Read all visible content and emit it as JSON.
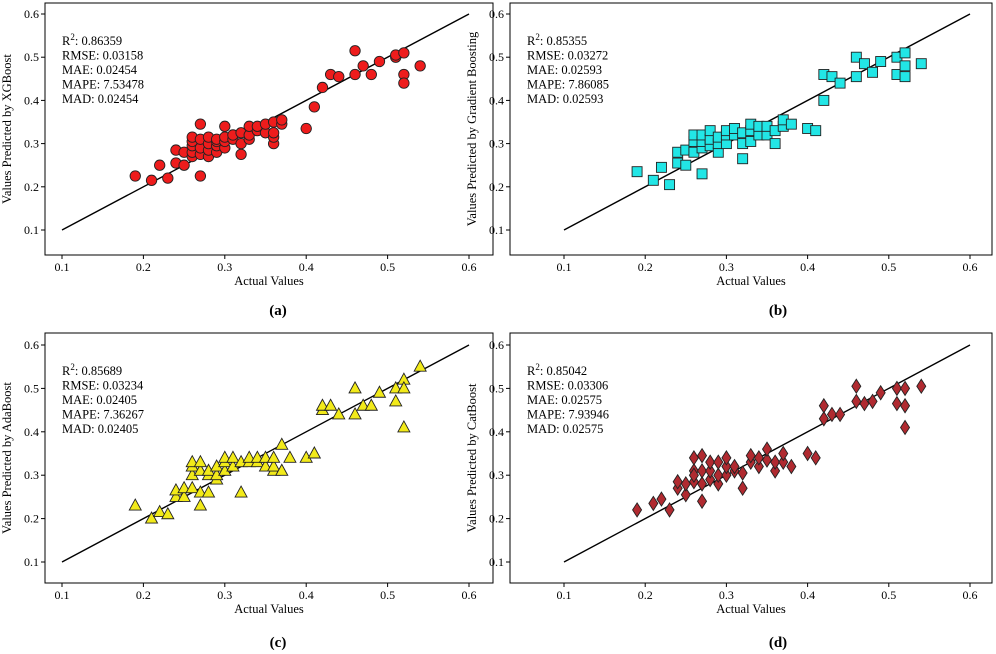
{
  "marker_colors": {
    "circle": "#ee1c1c",
    "square": "#22e6e6",
    "triangle": "#f2ea1a",
    "diamond": "#b02a30"
  },
  "chart_data": [
    {
      "type": "scatter",
      "marker": "circle",
      "xlabel": "Actual Values",
      "ylabel": "Values Predicted by XGBoost",
      "caption": "(a)",
      "xlim": [
        0.1,
        0.6
      ],
      "ylim": [
        0.1,
        0.6
      ],
      "ticks": [
        "0.1",
        "0.2",
        "0.3",
        "0.4",
        "0.5",
        "0.6"
      ],
      "reference_line": [
        [
          0.1,
          0.1
        ],
        [
          0.6,
          0.6
        ]
      ],
      "stats": {
        "r2_label": "R",
        "r2_exp": "2",
        "r2_value": ": 0.86359",
        "rmse": "RMSE: 0.03158",
        "mae": "MAE: 0.02454",
        "mape": "MAPE: 7.53478",
        "mad": "MAD: 0.02454"
      },
      "x": [
        0.19,
        0.21,
        0.22,
        0.23,
        0.24,
        0.24,
        0.25,
        0.25,
        0.26,
        0.26,
        0.26,
        0.26,
        0.26,
        0.27,
        0.27,
        0.27,
        0.27,
        0.27,
        0.28,
        0.28,
        0.28,
        0.28,
        0.29,
        0.29,
        0.29,
        0.29,
        0.3,
        0.3,
        0.3,
        0.3,
        0.31,
        0.31,
        0.32,
        0.32,
        0.32,
        0.33,
        0.33,
        0.33,
        0.34,
        0.34,
        0.35,
        0.35,
        0.36,
        0.36,
        0.36,
        0.36,
        0.37,
        0.37,
        0.4,
        0.41,
        0.42,
        0.43,
        0.44,
        0.46,
        0.46,
        0.47,
        0.48,
        0.49,
        0.51,
        0.51,
        0.52,
        0.52,
        0.52,
        0.54
      ],
      "y": [
        0.225,
        0.215,
        0.25,
        0.22,
        0.255,
        0.285,
        0.25,
        0.28,
        0.27,
        0.28,
        0.295,
        0.305,
        0.315,
        0.225,
        0.275,
        0.29,
        0.31,
        0.345,
        0.27,
        0.285,
        0.3,
        0.315,
        0.28,
        0.295,
        0.305,
        0.31,
        0.29,
        0.305,
        0.315,
        0.34,
        0.31,
        0.32,
        0.275,
        0.3,
        0.325,
        0.31,
        0.32,
        0.34,
        0.33,
        0.34,
        0.325,
        0.345,
        0.3,
        0.315,
        0.325,
        0.35,
        0.345,
        0.355,
        0.335,
        0.385,
        0.43,
        0.46,
        0.455,
        0.46,
        0.515,
        0.48,
        0.46,
        0.49,
        0.5,
        0.505,
        0.51,
        0.46,
        0.44,
        0.48
      ]
    },
    {
      "type": "scatter",
      "marker": "square",
      "xlabel": "Actual Values",
      "ylabel": "Values Predicted by Gradient Boosting",
      "caption": "(b)",
      "xlim": [
        0.1,
        0.6
      ],
      "ylim": [
        0.1,
        0.6
      ],
      "ticks": [
        "0.1",
        "0.2",
        "0.3",
        "0.4",
        "0.5",
        "0.6"
      ],
      "reference_line": [
        [
          0.1,
          0.1
        ],
        [
          0.6,
          0.6
        ]
      ],
      "stats": {
        "r2_label": "R",
        "r2_exp": "2",
        "r2_value": ": 0.85355",
        "rmse": "RMSE: 0.03272",
        "mae": "MAE: 0.02593",
        "mape": "MAPE: 7.86085",
        "mad": "MAD: 0.02593"
      },
      "x": [
        0.19,
        0.21,
        0.22,
        0.23,
        0.24,
        0.24,
        0.25,
        0.25,
        0.26,
        0.26,
        0.26,
        0.27,
        0.27,
        0.27,
        0.27,
        0.28,
        0.28,
        0.28,
        0.29,
        0.29,
        0.29,
        0.3,
        0.3,
        0.3,
        0.31,
        0.31,
        0.32,
        0.32,
        0.32,
        0.33,
        0.33,
        0.33,
        0.34,
        0.34,
        0.35,
        0.35,
        0.36,
        0.36,
        0.37,
        0.37,
        0.38,
        0.4,
        0.41,
        0.42,
        0.42,
        0.43,
        0.44,
        0.46,
        0.46,
        0.47,
        0.48,
        0.49,
        0.51,
        0.51,
        0.52,
        0.52,
        0.52,
        0.54
      ],
      "y": [
        0.235,
        0.215,
        0.245,
        0.205,
        0.255,
        0.28,
        0.25,
        0.285,
        0.28,
        0.305,
        0.32,
        0.23,
        0.29,
        0.305,
        0.32,
        0.295,
        0.31,
        0.33,
        0.28,
        0.3,
        0.315,
        0.3,
        0.32,
        0.33,
        0.32,
        0.335,
        0.265,
        0.3,
        0.325,
        0.305,
        0.33,
        0.345,
        0.32,
        0.34,
        0.32,
        0.34,
        0.3,
        0.33,
        0.34,
        0.355,
        0.345,
        0.335,
        0.33,
        0.4,
        0.46,
        0.455,
        0.44,
        0.455,
        0.5,
        0.485,
        0.465,
        0.49,
        0.46,
        0.5,
        0.51,
        0.455,
        0.48,
        0.485
      ]
    },
    {
      "type": "scatter",
      "marker": "triangle",
      "xlabel": "Actual Values",
      "ylabel": "Values Predicted by AdaBoost",
      "caption": "(c)",
      "xlim": [
        0.1,
        0.6
      ],
      "ylim": [
        0.1,
        0.6
      ],
      "ticks": [
        "0.1",
        "0.2",
        "0.3",
        "0.4",
        "0.5",
        "0.6"
      ],
      "reference_line": [
        [
          0.1,
          0.1
        ],
        [
          0.6,
          0.6
        ]
      ],
      "stats": {
        "r2_label": "R",
        "r2_exp": "2",
        "r2_value": ": 0.85689",
        "rmse": "RMSE: 0.03234",
        "mae": "MAE: 0.02405",
        "mape": "MAPE: 7.36267",
        "mad": "MAD: 0.02405"
      },
      "x": [
        0.19,
        0.21,
        0.22,
        0.23,
        0.24,
        0.24,
        0.25,
        0.25,
        0.26,
        0.26,
        0.26,
        0.26,
        0.27,
        0.27,
        0.27,
        0.27,
        0.28,
        0.28,
        0.28,
        0.29,
        0.29,
        0.29,
        0.3,
        0.3,
        0.3,
        0.31,
        0.31,
        0.32,
        0.32,
        0.33,
        0.33,
        0.34,
        0.34,
        0.35,
        0.35,
        0.36,
        0.36,
        0.36,
        0.37,
        0.37,
        0.38,
        0.4,
        0.41,
        0.42,
        0.42,
        0.43,
        0.44,
        0.46,
        0.46,
        0.47,
        0.48,
        0.49,
        0.51,
        0.51,
        0.52,
        0.52,
        0.52,
        0.54
      ],
      "y": [
        0.23,
        0.2,
        0.215,
        0.21,
        0.25,
        0.265,
        0.25,
        0.27,
        0.27,
        0.3,
        0.32,
        0.33,
        0.23,
        0.26,
        0.31,
        0.33,
        0.26,
        0.3,
        0.31,
        0.29,
        0.3,
        0.32,
        0.31,
        0.33,
        0.34,
        0.32,
        0.34,
        0.26,
        0.33,
        0.33,
        0.34,
        0.33,
        0.34,
        0.32,
        0.34,
        0.31,
        0.32,
        0.34,
        0.31,
        0.37,
        0.34,
        0.34,
        0.35,
        0.45,
        0.46,
        0.46,
        0.44,
        0.44,
        0.5,
        0.46,
        0.46,
        0.49,
        0.47,
        0.5,
        0.52,
        0.41,
        0.5,
        0.55
      ]
    },
    {
      "type": "scatter",
      "marker": "diamond",
      "xlabel": "Actual Values",
      "ylabel": "Values Predicted by CatBoost",
      "caption": "(d)",
      "xlim": [
        0.1,
        0.6
      ],
      "ylim": [
        0.1,
        0.6
      ],
      "ticks": [
        "0.1",
        "0.2",
        "0.3",
        "0.4",
        "0.5",
        "0.6"
      ],
      "reference_line": [
        [
          0.1,
          0.1
        ],
        [
          0.6,
          0.6
        ]
      ],
      "stats": {
        "r2_label": "R",
        "r2_exp": "2",
        "r2_value": ": 0.85042",
        "rmse": "RMSE: 0.03306",
        "mae": "MAE: 0.02575",
        "mape": "MAPE: 7.93946",
        "mad": "MAD: 0.02575"
      },
      "x": [
        0.19,
        0.21,
        0.22,
        0.23,
        0.24,
        0.24,
        0.25,
        0.25,
        0.26,
        0.26,
        0.26,
        0.26,
        0.27,
        0.27,
        0.27,
        0.27,
        0.28,
        0.28,
        0.28,
        0.29,
        0.29,
        0.29,
        0.3,
        0.3,
        0.3,
        0.31,
        0.31,
        0.32,
        0.32,
        0.33,
        0.33,
        0.34,
        0.34,
        0.35,
        0.35,
        0.36,
        0.36,
        0.37,
        0.37,
        0.38,
        0.4,
        0.41,
        0.42,
        0.42,
        0.43,
        0.44,
        0.46,
        0.46,
        0.47,
        0.48,
        0.49,
        0.51,
        0.51,
        0.52,
        0.52,
        0.52,
        0.54
      ],
      "y": [
        0.22,
        0.235,
        0.245,
        0.22,
        0.27,
        0.285,
        0.255,
        0.28,
        0.285,
        0.31,
        0.34,
        0.3,
        0.24,
        0.28,
        0.31,
        0.345,
        0.29,
        0.31,
        0.33,
        0.28,
        0.3,
        0.33,
        0.3,
        0.32,
        0.34,
        0.31,
        0.32,
        0.27,
        0.305,
        0.33,
        0.345,
        0.32,
        0.34,
        0.335,
        0.36,
        0.31,
        0.33,
        0.33,
        0.35,
        0.32,
        0.35,
        0.34,
        0.43,
        0.46,
        0.44,
        0.44,
        0.47,
        0.505,
        0.465,
        0.47,
        0.49,
        0.465,
        0.5,
        0.5,
        0.46,
        0.41,
        0.505
      ]
    }
  ]
}
